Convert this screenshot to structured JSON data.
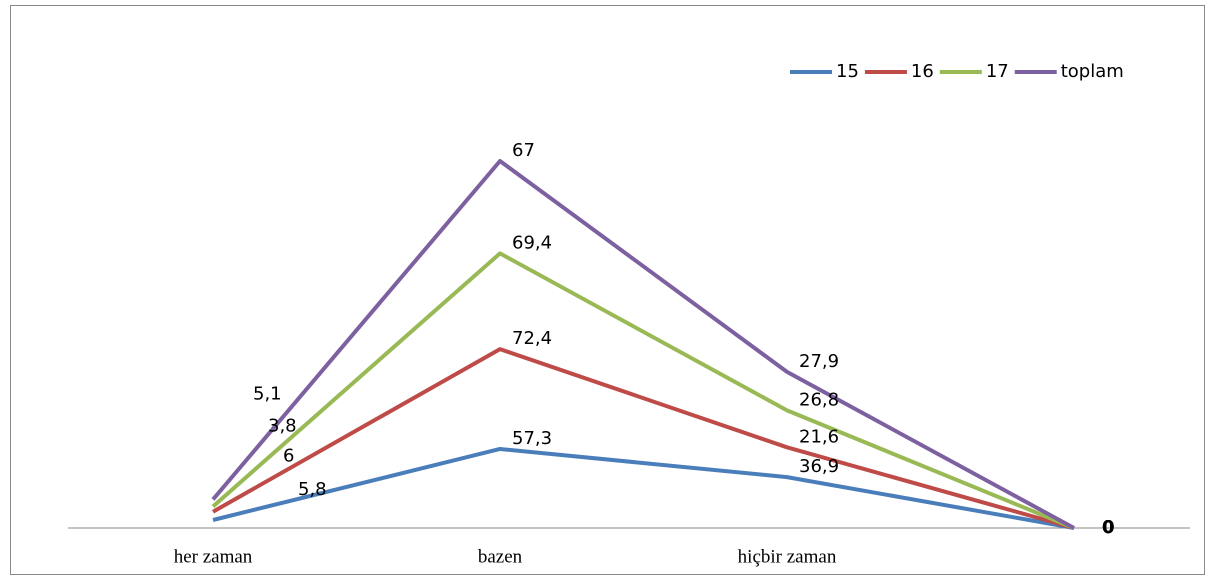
{
  "chart_data": {
    "type": "stacked-line",
    "categories": [
      "her zaman",
      "bazen",
      "hiçbir zaman",
      null
    ],
    "series": [
      {
        "name": "15",
        "color": "#4a7ebb",
        "values": [
          5.8,
          57.3,
          36.9,
          0
        ],
        "value_labels": [
          "5,8",
          "57,3",
          "36,9",
          "0"
        ]
      },
      {
        "name": "16",
        "color": "#be4b48",
        "values": [
          6,
          72.4,
          21.6,
          0
        ],
        "value_labels": [
          "6",
          "72,4",
          "21,6",
          "0"
        ]
      },
      {
        "name": "17",
        "color": "#98b954",
        "values": [
          3.8,
          69.4,
          26.8,
          0
        ],
        "value_labels": [
          "3,8",
          "69,4",
          "26,8",
          "0"
        ]
      },
      {
        "name": "toplam",
        "color": "#7d60a0",
        "values": [
          5.1,
          67,
          27.9,
          0
        ],
        "value_labels": [
          "5,1",
          "67",
          "27,9",
          "0"
        ]
      }
    ],
    "legend": "top-right"
  }
}
